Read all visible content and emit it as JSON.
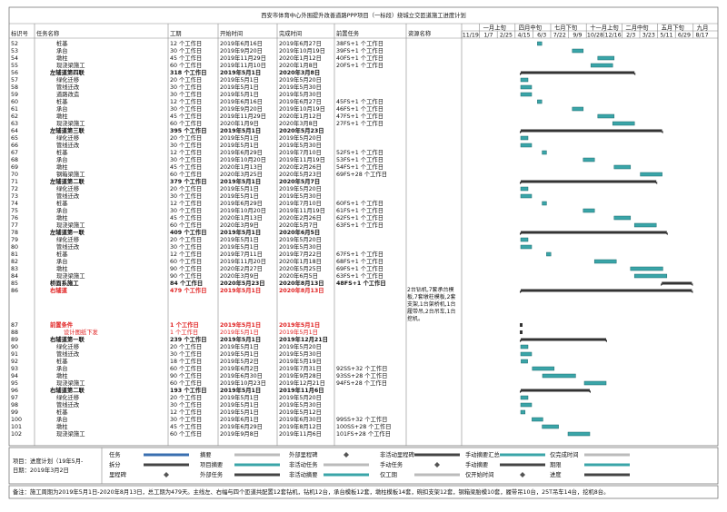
{
  "title": "西安市体育中心外围提升改善道路PPP项目（一标段）绕城立交匝道施工进度计划",
  "columns": [
    "标识号",
    "任务名称",
    "工期",
    "开始时间",
    "完成时间",
    "前置任务",
    "资源名称"
  ],
  "timescale": {
    "top": [
      "一月上旬",
      "四月中旬",
      "七月下旬",
      "十一月上旬",
      "二月中旬",
      "五月下旬",
      "九月"
    ],
    "bottom": [
      "11/19",
      "1/7",
      "2/25",
      "4/15",
      "6/3",
      "7/22",
      "9/9",
      "10/28",
      "12/16",
      "2/3",
      "3/23",
      "5/11",
      "6/29",
      "8/17"
    ]
  },
  "rows": [
    {
      "id": "52",
      "name": "桩基",
      "duration": "12 个工作日",
      "start": "2019年6月16日",
      "finish": "2019年6月27日",
      "pred": "38FS+1 个工作日"
    },
    {
      "id": "53",
      "name": "承台",
      "duration": "30 个工作日",
      "start": "2019年9月20日",
      "finish": "2019年10月19日",
      "pred": "39FS+1 个工作日"
    },
    {
      "id": "54",
      "name": "墩柱",
      "duration": "45 个工作日",
      "start": "2019年11月29日",
      "finish": "2020年1月12日",
      "pred": "40FS+1 个工作日"
    },
    {
      "id": "55",
      "name": "现浇梁施工",
      "duration": "60 个工作日",
      "start": "2019年11月10日",
      "finish": "2020年1月8日",
      "pred": "20FS+1 个工作日"
    },
    {
      "id": "56",
      "name": "左辅道第四联",
      "duration": "318 个工作日",
      "start": "2019年5月1日",
      "finish": "2020年3月8日",
      "style": "summary"
    },
    {
      "id": "57",
      "name": "绿化迁移",
      "duration": "20 个工作日",
      "start": "2019年5月1日",
      "finish": "2019年5月20日"
    },
    {
      "id": "58",
      "name": "管线迁改",
      "duration": "30 个工作日",
      "start": "2019年5月1日",
      "finish": "2019年5月30日"
    },
    {
      "id": "59",
      "name": "道路改造",
      "duration": "30 个工作日",
      "start": "2019年5月1日",
      "finish": "2019年5月30日"
    },
    {
      "id": "60",
      "name": "桩基",
      "duration": "12 个工作日",
      "start": "2019年6月16日",
      "finish": "2019年6月27日",
      "pred": "45FS+1 个工作日"
    },
    {
      "id": "61",
      "name": "承台",
      "duration": "30 个工作日",
      "start": "2019年9月20日",
      "finish": "2019年10月19日",
      "pred": "46FS+1 个工作日"
    },
    {
      "id": "62",
      "name": "墩柱",
      "duration": "45 个工作日",
      "start": "2019年11月29日",
      "finish": "2020年1月12日",
      "pred": "47FS+1 个工作日"
    },
    {
      "id": "63",
      "name": "现浇梁施工",
      "duration": "60 个工作日",
      "start": "2020年1月9日",
      "finish": "2020年3月8日",
      "pred": "27FS+1 个工作日"
    },
    {
      "id": "64",
      "name": "左辅道第三联",
      "duration": "395 个工作日",
      "start": "2019年5月1日",
      "finish": "2020年5月23日",
      "style": "summary"
    },
    {
      "id": "65",
      "name": "绿化迁移",
      "duration": "20 个工作日",
      "start": "2019年5月1日",
      "finish": "2019年5月20日"
    },
    {
      "id": "66",
      "name": "管线迁改",
      "duration": "30 个工作日",
      "start": "2019年5月1日",
      "finish": "2019年5月30日"
    },
    {
      "id": "67",
      "name": "桩基",
      "duration": "12 个工作日",
      "start": "2019年6月29日",
      "finish": "2019年7月10日",
      "pred": "52FS+1 个工作日"
    },
    {
      "id": "68",
      "name": "承台",
      "duration": "30 个工作日",
      "start": "2019年10月20日",
      "finish": "2019年11月19日",
      "pred": "53FS+1 个工作日"
    },
    {
      "id": "69",
      "name": "墩柱",
      "duration": "45 个工作日",
      "start": "2020年1月13日",
      "finish": "2020年2月26日",
      "pred": "54FS+1 个工作日"
    },
    {
      "id": "70",
      "name": "钢箱梁施工",
      "duration": "60 个工作日",
      "start": "2020年3月25日",
      "finish": "2020年5月23日",
      "pred": "69FS+28 个工作日"
    },
    {
      "id": "71",
      "name": "左辅道第二联",
      "duration": "379 个工作日",
      "start": "2019年5月1日",
      "finish": "2020年5月7日",
      "style": "summary"
    },
    {
      "id": "72",
      "name": "绿化迁移",
      "duration": "20 个工作日",
      "start": "2019年5月1日",
      "finish": "2019年5月20日"
    },
    {
      "id": "73",
      "name": "管线迁改",
      "duration": "30 个工作日",
      "start": "2019年5月1日",
      "finish": "2019年5月30日"
    },
    {
      "id": "74",
      "name": "桩基",
      "duration": "12 个工作日",
      "start": "2019年6月29日",
      "finish": "2019年7月10日",
      "pred": "60FS+1 个工作日"
    },
    {
      "id": "75",
      "name": "承台",
      "duration": "30 个工作日",
      "start": "2019年10月20日",
      "finish": "2019年11月19日",
      "pred": "61FS+1 个工作日"
    },
    {
      "id": "76",
      "name": "墩柱",
      "duration": "45 个工作日",
      "start": "2020年1月13日",
      "finish": "2020年2月26日",
      "pred": "62FS+1 个工作日"
    },
    {
      "id": "77",
      "name": "现浇梁施工",
      "duration": "60 个工作日",
      "start": "2020年3月9日",
      "finish": "2020年5月7日",
      "pred": "63FS+1 个工作日"
    },
    {
      "id": "78",
      "name": "左辅道第一联",
      "duration": "409 个工作日",
      "start": "2019年5月1日",
      "finish": "2020年6月5日",
      "style": "summary"
    },
    {
      "id": "79",
      "name": "绿化迁移",
      "duration": "20 个工作日",
      "start": "2019年5月1日",
      "finish": "2019年5月20日"
    },
    {
      "id": "80",
      "name": "管线迁改",
      "duration": "30 个工作日",
      "start": "2019年5月1日",
      "finish": "2019年5月30日"
    },
    {
      "id": "81",
      "name": "桩基",
      "duration": "12 个工作日",
      "start": "2019年7月11日",
      "finish": "2019年7月22日",
      "pred": "67FS+1 个工作日"
    },
    {
      "id": "82",
      "name": "承台",
      "duration": "60 个工作日",
      "start": "2019年11月20日",
      "finish": "2020年1月18日",
      "pred": "68FS+1 个工作日"
    },
    {
      "id": "83",
      "name": "墩柱",
      "duration": "90 个工作日",
      "start": "2020年2月27日",
      "finish": "2020年5月25日",
      "pred": "69FS+1 个工作日"
    },
    {
      "id": "84",
      "name": "现浇梁施工",
      "duration": "90 个工作日",
      "start": "2020年3月9日",
      "finish": "2020年6月5日",
      "pred": "63FS+1 个工作日"
    },
    {
      "id": "85",
      "name": "桥面系施工",
      "duration": "84 个工作日",
      "start": "2020年5月23日",
      "finish": "2020年8月13日",
      "pred": "48FS+1 个工作日",
      "style": "summary"
    },
    {
      "id": "86",
      "name": "右辅道",
      "duration": "479 个工作日",
      "start": "2019年5月1日",
      "finish": "2020年8月13日",
      "resource": "2台钻机,7套承台模板,7套墩柱模板,2套支架,1台架桥机,1台履带吊,2台吊车,1台挖机。",
      "style": "red"
    },
    {
      "id": "87",
      "name": "前置条件",
      "duration": "1 个工作日",
      "start": "2019年5月1日",
      "finish": "2019年5月1日",
      "style": "red"
    },
    {
      "id": "88",
      "name": "设计图纸下发",
      "duration": "1 个工作日",
      "start": "2019年5月1日",
      "finish": "2019年5月1日",
      "style": "red-sub"
    },
    {
      "id": "89",
      "name": "右辅道第一联",
      "duration": "239 个工作日",
      "start": "2019年5月1日",
      "finish": "2019年12月21日",
      "style": "summary"
    },
    {
      "id": "90",
      "name": "绿化迁移",
      "duration": "20 个工作日",
      "start": "2019年5月1日",
      "finish": "2019年5月20日"
    },
    {
      "id": "91",
      "name": "管线迁改",
      "duration": "30 个工作日",
      "start": "2019年5月1日",
      "finish": "2019年5月30日"
    },
    {
      "id": "92",
      "name": "桩基",
      "duration": "18 个工作日",
      "start": "2019年5月2日",
      "finish": "2019年5月19日"
    },
    {
      "id": "93",
      "name": "承台",
      "duration": "60 个工作日",
      "start": "2019年6月2日",
      "finish": "2019年7月31日",
      "pred": "92SS+32 个工作日"
    },
    {
      "id": "94",
      "name": "墩柱",
      "duration": "90 个工作日",
      "start": "2019年6月30日",
      "finish": "2019年9月28日",
      "pred": "93SS+28 个工作日"
    },
    {
      "id": "95",
      "name": "现浇梁施工",
      "duration": "60 个工作日",
      "start": "2019年10月23日",
      "finish": "2019年12月21日",
      "pred": "94FS+28 个工作日"
    },
    {
      "id": "96",
      "name": "右辅道第二联",
      "duration": "193 个工作日",
      "start": "2019年5月1日",
      "finish": "2019年11月6日",
      "style": "summary"
    },
    {
      "id": "97",
      "name": "绿化迁移",
      "duration": "20 个工作日",
      "start": "2019年5月1日",
      "finish": "2019年5月20日"
    },
    {
      "id": "98",
      "name": "管线迁改",
      "duration": "30 个工作日",
      "start": "2019年5月1日",
      "finish": "2019年5月30日"
    },
    {
      "id": "99",
      "name": "桩基",
      "duration": "12 个工作日",
      "start": "2019年5月1日",
      "finish": "2019年5月12日"
    },
    {
      "id": "100",
      "name": "承台",
      "duration": "30 个工作日",
      "start": "2019年6月1日",
      "finish": "2019年6月30日",
      "pred": "99SS+32 个工作日"
    },
    {
      "id": "101",
      "name": "墩柱",
      "duration": "45 个工作日",
      "start": "2019年6月29日",
      "finish": "2019年8月12日",
      "pred": "100SS+28 个工作日"
    },
    {
      "id": "102",
      "name": "现浇梁施工",
      "duration": "60 个工作日",
      "start": "2019年9月8日",
      "finish": "2019年11月6日",
      "pred": "101FS+28 个工作日"
    }
  ],
  "legend": {
    "project": "项目：进度计划（19年5月-",
    "date": "日期：2019年3月2日",
    "items": [
      [
        "任务",
        "拆分",
        "里程碑"
      ],
      [
        "摘要",
        "项目摘要",
        "外部任务"
      ],
      [
        "外部里程碑",
        "非活动任务",
        "非活动摘要"
      ],
      [
        "非活动里程碑",
        "手动任务",
        "仅工期"
      ],
      [
        "手动摘要汇总",
        "手动摘要",
        "仅开始时间"
      ],
      [
        "仅完成时间",
        "期限",
        "进度"
      ]
    ]
  },
  "note": "备注：施工周期为2019年5月1日-2020年8月13日，总工期为479天。主线左、右幅与四个匝道共配置12套钻机，钻机12台，承台模板12套，墩柱模板14套，碗扣支架12套，钢箱梁胎模10套，履带吊10台，25T吊车14台，挖机8台。"
}
